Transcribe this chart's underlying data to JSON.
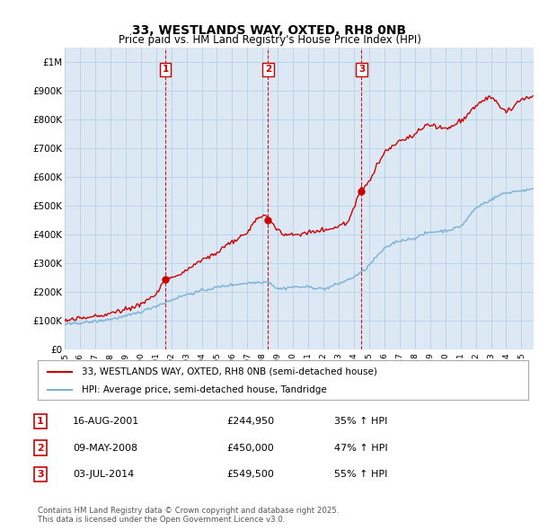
{
  "title": "33, WESTLANDS WAY, OXTED, RH8 0NB",
  "subtitle": "Price paid vs. HM Land Registry's House Price Index (HPI)",
  "legend_line1": "33, WESTLANDS WAY, OXTED, RH8 0NB (semi-detached house)",
  "legend_line2": "HPI: Average price, semi-detached house, Tandridge",
  "footnote": "Contains HM Land Registry data © Crown copyright and database right 2025.\nThis data is licensed under the Open Government Licence v3.0.",
  "transactions": [
    {
      "num": 1,
      "date": "16-AUG-2001",
      "price": "£244,950",
      "pct": "35% ↑ HPI",
      "year": 2001.62,
      "price_val": 244950
    },
    {
      "num": 2,
      "date": "09-MAY-2008",
      "price": "£450,000",
      "pct": "47% ↑ HPI",
      "year": 2008.36,
      "price_val": 450000
    },
    {
      "num": 3,
      "date": "03-JUL-2014",
      "price": "£549,500",
      "pct": "55% ↑ HPI",
      "year": 2014.5,
      "price_val": 549500
    }
  ],
  "price_color": "#cc0000",
  "hpi_color": "#7ab0d4",
  "vline_color": "#cc0000",
  "grid_color": "#b8cfe8",
  "bg_color": "#dce9f5",
  "plot_bg": "#dce9f5",
  "ylim": [
    0,
    1050000
  ],
  "yticks": [
    0,
    100000,
    200000,
    300000,
    400000,
    500000,
    600000,
    700000,
    800000,
    900000,
    1000000
  ],
  "ytick_labels": [
    "£0",
    "£100K",
    "£200K",
    "£300K",
    "£400K",
    "£500K",
    "£600K",
    "£700K",
    "£800K",
    "£900K",
    "£1M"
  ],
  "xlim_start": 1995.0,
  "xlim_end": 2025.8,
  "xticks": [
    1995,
    1996,
    1997,
    1998,
    1999,
    2000,
    2001,
    2002,
    2003,
    2004,
    2005,
    2006,
    2007,
    2008,
    2009,
    2010,
    2011,
    2012,
    2013,
    2014,
    2015,
    2016,
    2017,
    2018,
    2019,
    2020,
    2021,
    2022,
    2023,
    2024,
    2025
  ]
}
